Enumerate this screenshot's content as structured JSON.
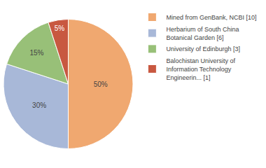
{
  "chart_data": {
    "type": "pie",
    "categories": [
      "Mined from GenBank, NCBI [10]",
      "Herbarium of South China\nBotanical Garden [6]",
      "University of Edinburgh [3]",
      "Balochistan University of\nInformation Technology\nEngineerin... [1]"
    ],
    "values": [
      50,
      30,
      15,
      5
    ],
    "value_labels": [
      "50%",
      "30%",
      "15%",
      "5%"
    ],
    "colors": [
      "#f0a870",
      "#a8b8d8",
      "#98c078",
      "#c85840"
    ],
    "data_labels": true,
    "legend": "right"
  }
}
